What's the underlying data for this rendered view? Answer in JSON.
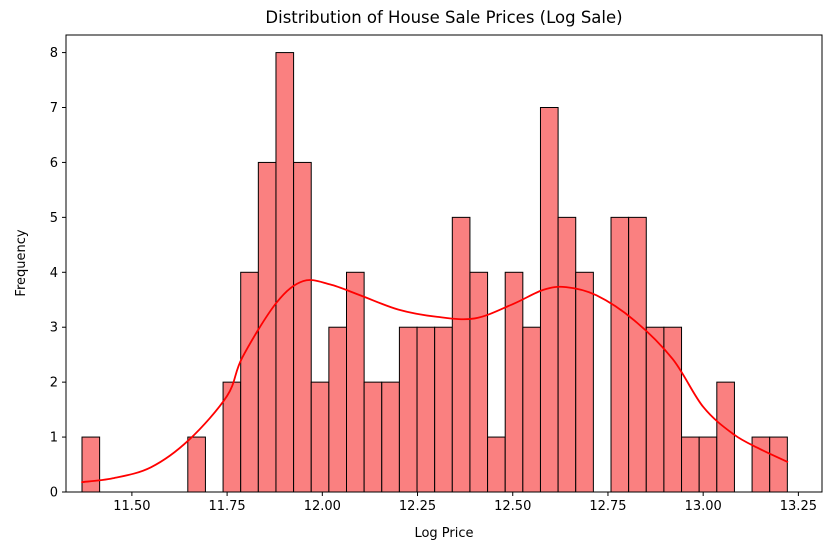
{
  "figure": {
    "title": "Distribution of House Sale Prices (Log Sale)",
    "xlabel": "Log Price",
    "ylabel": "Frequency"
  },
  "chart_data": {
    "type": "bar",
    "subtype": "histogram_with_kde",
    "title": "Distribution of House Sale Prices (Log Sale)",
    "xlabel": "Log Price",
    "ylabel": "Frequency",
    "xlim": [
      11.327,
      13.312
    ],
    "ylim": [
      0,
      8.32
    ],
    "grid": false,
    "legend": null,
    "x_tick_values": [
      11.5,
      11.75,
      12.0,
      12.25,
      12.5,
      12.75,
      13.0,
      13.25
    ],
    "x_tick_labels": [
      "11.50",
      "11.75",
      "12.00",
      "12.25",
      "12.50",
      "12.75",
      "13.00",
      "13.25"
    ],
    "y_tick_values": [
      0,
      1,
      2,
      3,
      4,
      5,
      6,
      7,
      8
    ],
    "y_tick_labels": [
      "0",
      "1",
      "2",
      "3",
      "4",
      "5",
      "6",
      "7",
      "8"
    ],
    "histogram": {
      "bin_start": 11.369,
      "bin_width": 0.0463,
      "counts": [
        1,
        0,
        0,
        0,
        0,
        0,
        1,
        0,
        2,
        4,
        6,
        8,
        6,
        2,
        3,
        4,
        2,
        2,
        3,
        3,
        3,
        5,
        4,
        1,
        4,
        3,
        7,
        5,
        4,
        0,
        5,
        5,
        3,
        3,
        1,
        1,
        2,
        0,
        1,
        1
      ],
      "total_observations": 105,
      "max_count": 8
    },
    "kde_curve": {
      "points": [
        [
          11.369,
          0.18
        ],
        [
          11.45,
          0.25
        ],
        [
          11.55,
          0.45
        ],
        [
          11.65,
          0.95
        ],
        [
          11.75,
          1.75
        ],
        [
          11.79,
          2.45
        ],
        [
          11.88,
          3.45
        ],
        [
          11.95,
          3.84
        ],
        [
          12.02,
          3.78
        ],
        [
          12.1,
          3.58
        ],
        [
          12.2,
          3.32
        ],
        [
          12.3,
          3.19
        ],
        [
          12.4,
          3.16
        ],
        [
          12.5,
          3.42
        ],
        [
          12.58,
          3.68
        ],
        [
          12.64,
          3.73
        ],
        [
          12.72,
          3.58
        ],
        [
          12.82,
          3.12
        ],
        [
          12.92,
          2.42
        ],
        [
          13.0,
          1.55
        ],
        [
          13.08,
          1.05
        ],
        [
          13.15,
          0.78
        ],
        [
          13.221,
          0.55
        ]
      ]
    },
    "colors": {
      "bar_fill": "#fa8080",
      "bar_edge": "#000000",
      "kde_line": "#ff0000",
      "spine": "#000000",
      "background": "#ffffff"
    }
  }
}
